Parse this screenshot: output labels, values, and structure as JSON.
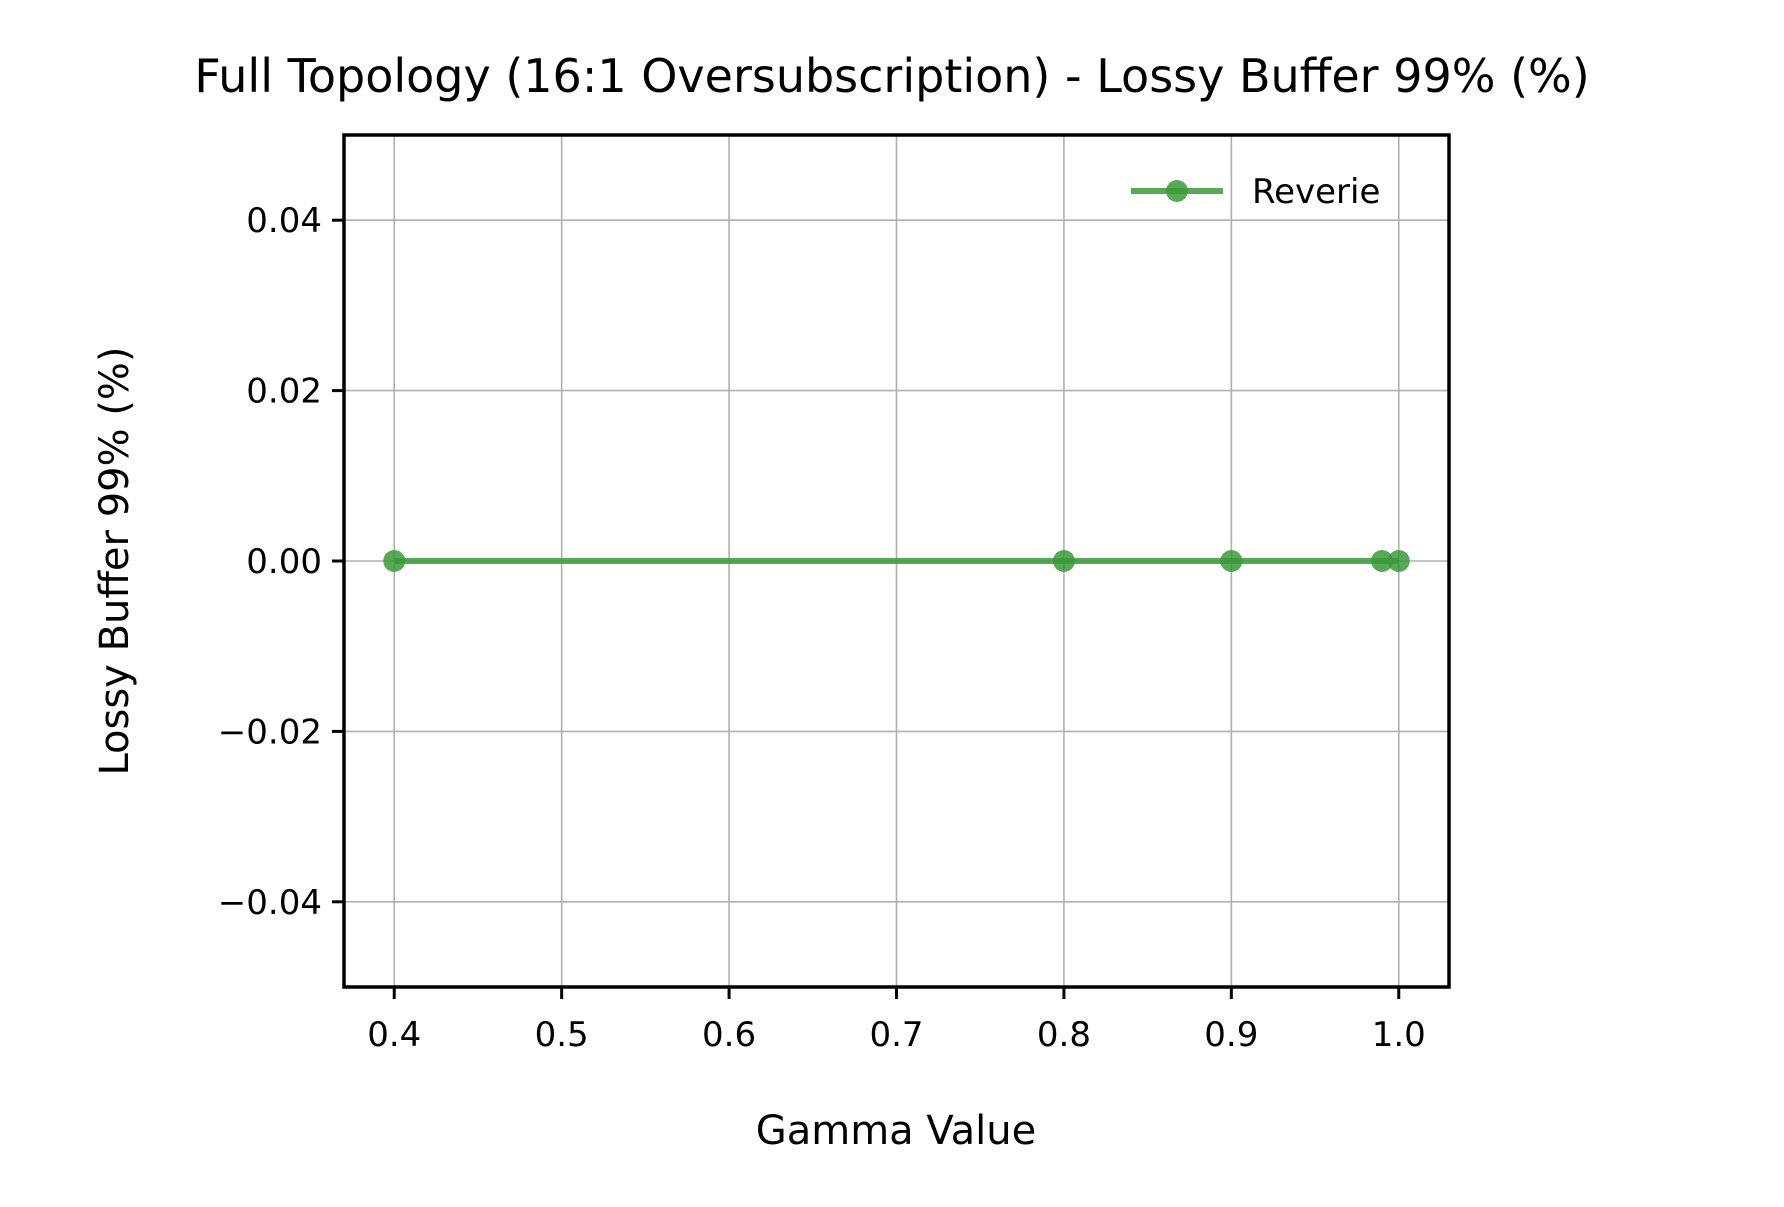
{
  "chart_data": {
    "type": "line",
    "title": "Full Topology (16:1 Oversubscription) - Lossy Buffer 99% (%)",
    "xlabel": "Gamma Value",
    "ylabel": "Lossy Buffer 99% (%)",
    "xlim": [
      0.37,
      1.03
    ],
    "ylim": [
      -0.05,
      0.05
    ],
    "xticks": [
      0.4,
      0.5,
      0.6,
      0.7,
      0.8,
      0.9,
      1.0
    ],
    "xtick_labels": [
      "0.4",
      "0.5",
      "0.6",
      "0.7",
      "0.8",
      "0.9",
      "1.0"
    ],
    "yticks": [
      -0.04,
      -0.02,
      0.0,
      0.02,
      0.04
    ],
    "ytick_labels": [
      "−0.04",
      "−0.02",
      "0.00",
      "0.02",
      "0.04"
    ],
    "grid": true,
    "legend_position": "top-right",
    "series": [
      {
        "name": "Reverie",
        "color": "#3a9a3a",
        "marker": "circle",
        "x": [
          0.4,
          0.8,
          0.9,
          0.99,
          1.0
        ],
        "y": [
          0,
          0,
          0,
          0,
          0
        ]
      }
    ]
  }
}
